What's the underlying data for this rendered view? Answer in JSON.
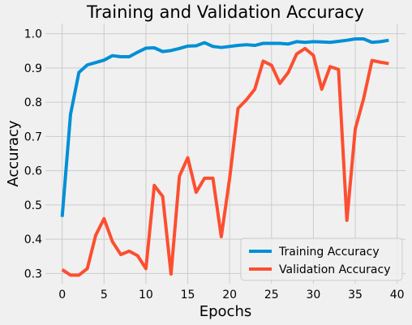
{
  "chart_data": {
    "type": "line",
    "title": "Training and Validation Accuracy",
    "xlabel": "Epochs",
    "ylabel": "Accuracy",
    "xlim": [
      -2,
      41
    ],
    "ylim": [
      0.27,
      1.03
    ],
    "xticks": [
      0,
      5,
      10,
      15,
      20,
      25,
      30,
      35,
      40
    ],
    "yticks": [
      0.3,
      0.4,
      0.5,
      0.6,
      0.7,
      0.8,
      0.9,
      1.0
    ],
    "grid": true,
    "legend_position": "bottom-right",
    "x": [
      0,
      1,
      2,
      3,
      4,
      5,
      6,
      7,
      8,
      9,
      10,
      11,
      12,
      13,
      14,
      15,
      16,
      17,
      18,
      19,
      20,
      21,
      22,
      23,
      24,
      25,
      26,
      27,
      28,
      29,
      30,
      31,
      32,
      33,
      34,
      35,
      36,
      37,
      38,
      39
    ],
    "series": [
      {
        "name": "Training Accuracy",
        "color": "#008fd5",
        "values": [
          0.465,
          0.765,
          0.887,
          0.909,
          0.916,
          0.923,
          0.936,
          0.933,
          0.933,
          0.946,
          0.958,
          0.959,
          0.948,
          0.951,
          0.957,
          0.964,
          0.965,
          0.974,
          0.963,
          0.96,
          0.963,
          0.966,
          0.968,
          0.966,
          0.972,
          0.972,
          0.972,
          0.97,
          0.977,
          0.975,
          0.977,
          0.976,
          0.975,
          0.978,
          0.981,
          0.985,
          0.985,
          0.975,
          0.977,
          0.981
        ]
      },
      {
        "name": "Validation Accuracy",
        "color": "#fc4f30",
        "values": [
          0.311,
          0.295,
          0.295,
          0.314,
          0.411,
          0.46,
          0.393,
          0.355,
          0.365,
          0.352,
          0.314,
          0.557,
          0.525,
          0.298,
          0.584,
          0.638,
          0.537,
          0.578,
          0.578,
          0.407,
          0.578,
          0.782,
          0.807,
          0.838,
          0.92,
          0.908,
          0.855,
          0.887,
          0.941,
          0.957,
          0.937,
          0.838,
          0.904,
          0.896,
          0.455,
          0.722,
          0.811,
          0.922,
          0.917,
          0.913
        ]
      }
    ]
  }
}
